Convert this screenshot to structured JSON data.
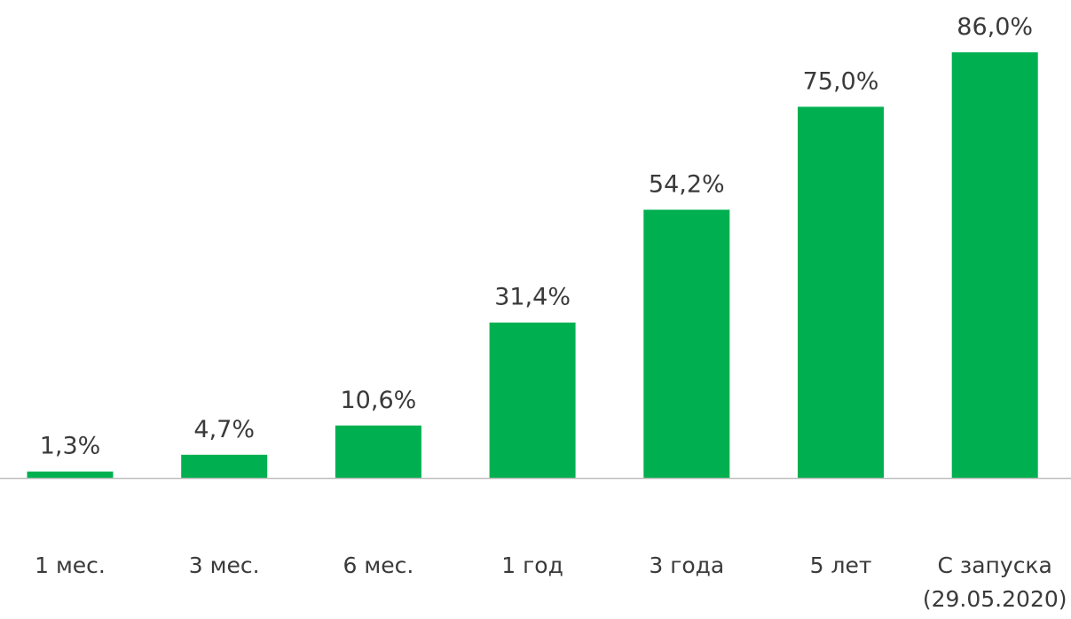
{
  "chart_data": {
    "type": "bar",
    "categories": [
      "1 мес.",
      "3 мес.",
      "6 мес.",
      "1 год",
      "3 года",
      "5 лет",
      "С запуска (29.05.2020)"
    ],
    "category_lines": [
      [
        "1 мес."
      ],
      [
        "3 мес."
      ],
      [
        "6 мес."
      ],
      [
        "1 год"
      ],
      [
        "3 года"
      ],
      [
        "5 лет"
      ],
      [
        "С запуска",
        "(29.05.2020)"
      ]
    ],
    "values": [
      1.3,
      4.7,
      10.6,
      31.4,
      54.2,
      75.0,
      86.0
    ],
    "value_labels": [
      "1,3%",
      "4,7%",
      "10,6%",
      "31,4%",
      "54,2%",
      "75,0%",
      "86,0%"
    ],
    "title": "",
    "xlabel": "",
    "ylabel": "",
    "ylim": [
      0,
      86
    ],
    "grid": false,
    "legend": "none",
    "colors": {
      "bar": "#00B050",
      "axis": "#BFBFBF",
      "text": "#3A3A3A"
    }
  }
}
